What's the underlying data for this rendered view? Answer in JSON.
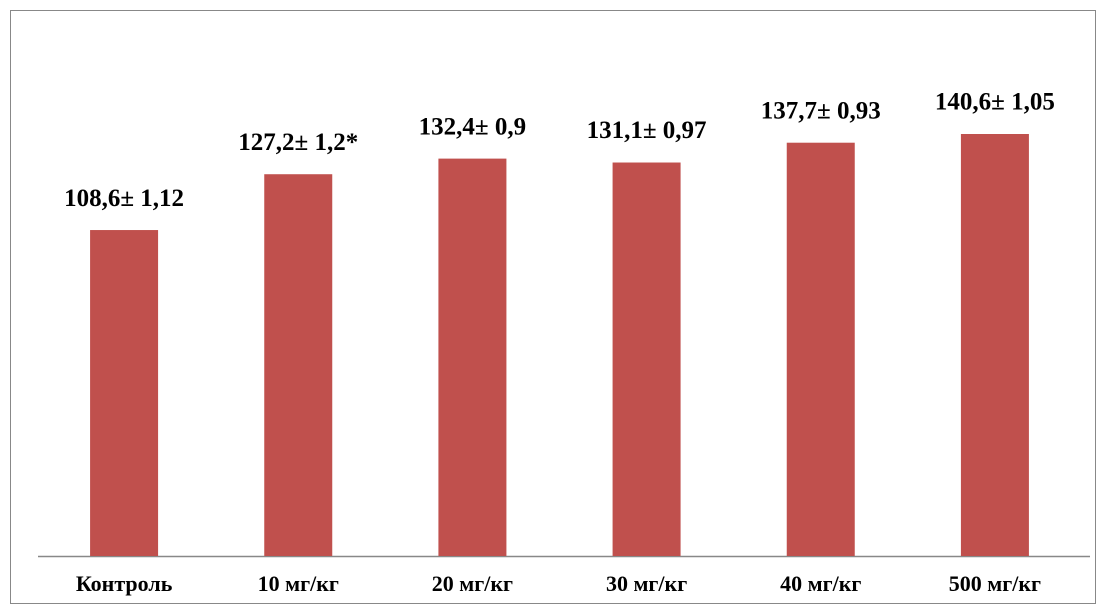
{
  "chart_data": {
    "type": "bar",
    "categories": [
      "Контроль",
      "10 мг/кг",
      "20 мг/кг",
      "30 мг/кг",
      "40 мг/кг",
      "500 мг/кг"
    ],
    "values": [
      108.6,
      127.2,
      132.4,
      131.1,
      137.7,
      140.6
    ],
    "value_labels": [
      "108,6± 1,12",
      "127,2± 1,2*",
      "132,4± 0,9",
      "131,1± 0,97",
      "137,7± 0,93",
      "140,6± 1,05"
    ],
    "color": "#c0504d"
  }
}
